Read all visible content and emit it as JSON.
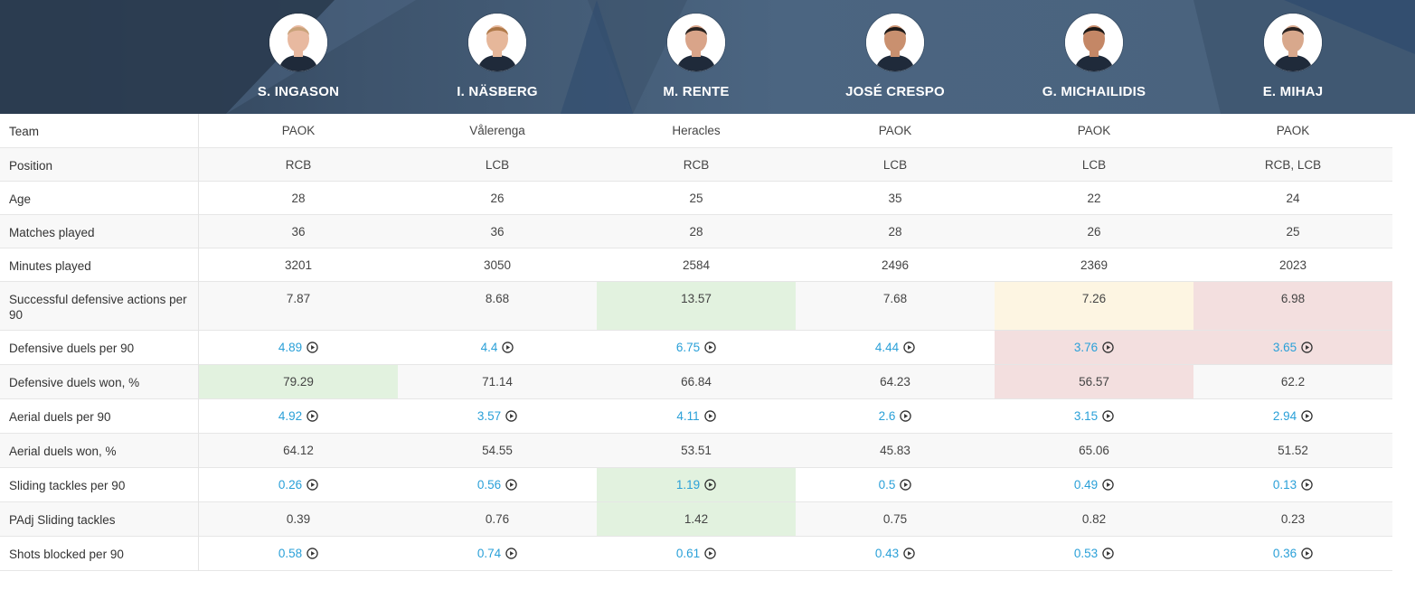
{
  "players": [
    {
      "name": "S. INGASON",
      "avatar_icon": "player-photo"
    },
    {
      "name": "I. NÄSBERG",
      "avatar_icon": "player-photo"
    },
    {
      "name": "M. RENTE",
      "avatar_icon": "player-photo"
    },
    {
      "name": "JOSÉ CRESPO",
      "avatar_icon": "player-photo"
    },
    {
      "name": "G. MICHAILIDIS",
      "avatar_icon": "player-photo"
    },
    {
      "name": "E. MIHAJ",
      "avatar_icon": "player-photo"
    }
  ],
  "rows": [
    {
      "label": "Team",
      "link": false,
      "values": [
        "PAOK",
        "Vålerenga",
        "Heracles",
        "PAOK",
        "PAOK",
        "PAOK"
      ],
      "highlights": [
        "",
        "",
        "",
        "",
        "",
        ""
      ]
    },
    {
      "label": "Position",
      "link": false,
      "values": [
        "RCB",
        "LCB",
        "RCB",
        "LCB",
        "LCB",
        "RCB, LCB"
      ],
      "highlights": [
        "",
        "",
        "",
        "",
        "",
        ""
      ]
    },
    {
      "label": "Age",
      "link": false,
      "values": [
        "28",
        "26",
        "25",
        "35",
        "22",
        "24"
      ],
      "highlights": [
        "",
        "",
        "",
        "",
        "",
        ""
      ]
    },
    {
      "label": "Matches played",
      "link": false,
      "values": [
        "36",
        "36",
        "28",
        "28",
        "26",
        "25"
      ],
      "highlights": [
        "",
        "",
        "",
        "",
        "",
        ""
      ]
    },
    {
      "label": "Minutes played",
      "link": false,
      "values": [
        "3201",
        "3050",
        "2584",
        "2496",
        "2369",
        "2023"
      ],
      "highlights": [
        "",
        "",
        "",
        "",
        "",
        ""
      ]
    },
    {
      "label": "Successful defensive actions per 90",
      "link": false,
      "values": [
        "7.87",
        "8.68",
        "13.57",
        "7.68",
        "7.26",
        "6.98"
      ],
      "highlights": [
        "",
        "",
        "green",
        "",
        "yellow",
        "red"
      ]
    },
    {
      "label": "Defensive duels per 90",
      "link": true,
      "values": [
        "4.89",
        "4.4",
        "6.75",
        "4.44",
        "3.76",
        "3.65"
      ],
      "highlights": [
        "",
        "",
        "",
        "",
        "red",
        "red"
      ]
    },
    {
      "label": "Defensive duels won, %",
      "link": false,
      "values": [
        "79.29",
        "71.14",
        "66.84",
        "64.23",
        "56.57",
        "62.2"
      ],
      "highlights": [
        "green",
        "",
        "",
        "",
        "red",
        ""
      ]
    },
    {
      "label": "Aerial duels per 90",
      "link": true,
      "values": [
        "4.92",
        "3.57",
        "4.11",
        "2.6",
        "3.15",
        "2.94"
      ],
      "highlights": [
        "",
        "",
        "",
        "",
        "",
        ""
      ]
    },
    {
      "label": "Aerial duels won, %",
      "link": false,
      "values": [
        "64.12",
        "54.55",
        "53.51",
        "45.83",
        "65.06",
        "51.52"
      ],
      "highlights": [
        "",
        "",
        "",
        "",
        "",
        ""
      ]
    },
    {
      "label": "Sliding tackles per 90",
      "link": true,
      "values": [
        "0.26",
        "0.56",
        "1.19",
        "0.5",
        "0.49",
        "0.13"
      ],
      "highlights": [
        "",
        "",
        "green",
        "",
        "",
        ""
      ]
    },
    {
      "label": "PAdj Sliding tackles",
      "link": false,
      "values": [
        "0.39",
        "0.76",
        "1.42",
        "0.75",
        "0.82",
        "0.23"
      ],
      "highlights": [
        "",
        "",
        "green",
        "",
        "",
        ""
      ]
    },
    {
      "label": "Shots blocked per 90",
      "link": true,
      "values": [
        "0.58",
        "0.74",
        "0.61",
        "0.43",
        "0.53",
        "0.36"
      ],
      "highlights": [
        "",
        "",
        "",
        "",
        "",
        ""
      ]
    }
  ],
  "colors": {
    "header": "#4a627d",
    "link": "#2aa0d8",
    "good": "#e2f2df",
    "mid": "#fdf5e2",
    "bad": "#f3dfdf"
  }
}
